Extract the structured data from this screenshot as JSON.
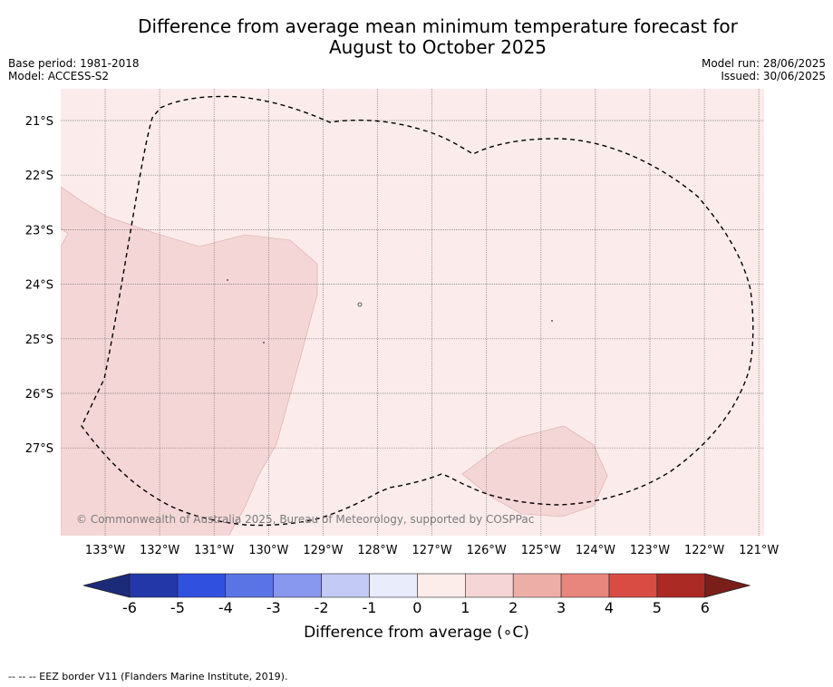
{
  "title_line1": "Difference from average mean minimum temperature forecast for",
  "title_line2": "August to October 2025",
  "base_period": "Base period: 1981-2018",
  "model": "Model: ACCESS-S2",
  "model_run": "Model run: 28/06/2025",
  "issued": "Issued: 30/06/2025",
  "copyright": "© Commonwealth of Australia 2025, Bureau of Meteorology, supported by COSPPac",
  "footnote": "--  --  -- EEZ border V11 (Flanders Marine Institute, 2019).",
  "colorbar": {
    "title": "Difference from average (∘C)",
    "ticks": [
      "-6",
      "-5",
      "-4",
      "-3",
      "-2",
      "-1",
      "0",
      "1",
      "2",
      "3",
      "4",
      "5",
      "6"
    ],
    "colors": [
      "#2337a8",
      "#3050e0",
      "#5a74e6",
      "#8898ee",
      "#c3caf5",
      "#e9ecfb",
      "#fcecea",
      "#f5d5d5",
      "#eeaea8",
      "#e8857d",
      "#d94c43",
      "#ac2a24"
    ],
    "low_extend_color": "#1c2a7a",
    "high_extend_color": "#7a1e1a"
  },
  "map": {
    "lat_labels": [
      "21°S",
      "22°S",
      "23°S",
      "24°S",
      "25°S",
      "26°S",
      "27°S"
    ],
    "lon_labels": [
      "133°W",
      "132°W",
      "131°W",
      "130°W",
      "129°W",
      "128°W",
      "127°W",
      "126°W",
      "125°W",
      "124°W",
      "123°W",
      "122°W",
      "121°W"
    ],
    "background_color": "#fbeceb",
    "anomaly_color": "#f5d6d6"
  }
}
